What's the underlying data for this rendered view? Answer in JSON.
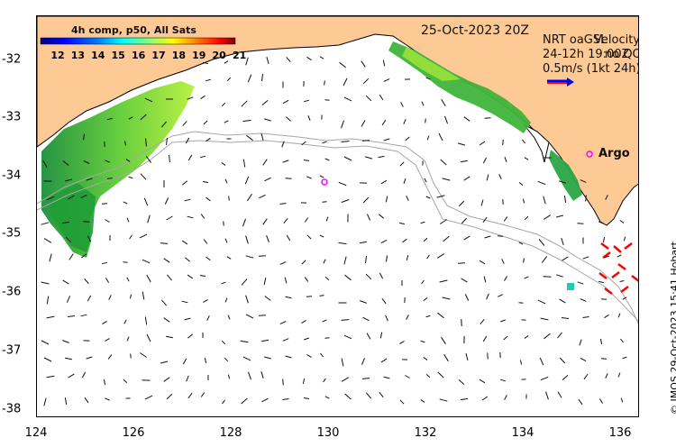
{
  "map": {
    "date_label": "25-Oct-2023 20Z",
    "credit": "© IMOS 29-Oct-2023 15:41 Hobart",
    "colorbar": {
      "title": "4h comp, p50, All Sats",
      "ticks": [
        "12",
        "13",
        "14",
        "15",
        "16",
        "17",
        "18",
        "19",
        "20",
        "21"
      ],
      "colors": [
        "#00007f",
        "#0000ff",
        "#0080ff",
        "#00ffff",
        "#80ff80",
        "#ffff00",
        "#ff8000",
        "#ff0000",
        "#7f0000"
      ]
    },
    "legend": {
      "line1_a": "NRT oaGSL",
      "line1_b": "Velocity",
      "line2_a": "24-12h 19:00Z",
      "line2_b": "no QC",
      "line3": "0.5m/s (1kt 24h)"
    },
    "argo_label": "Argo",
    "lon_ticks": [
      "124",
      "126",
      "128",
      "130",
      "132",
      "134",
      "136"
    ],
    "lat_ticks": [
      "-32",
      "-33",
      "-34",
      "-35",
      "-36",
      "-37",
      "-38"
    ],
    "colors": {
      "land": "#fdc995",
      "arrow": "#111111",
      "argo": "#ff00ff",
      "bathy": "#a6a6a6",
      "ship_vectors": "#ff0000"
    }
  }
}
